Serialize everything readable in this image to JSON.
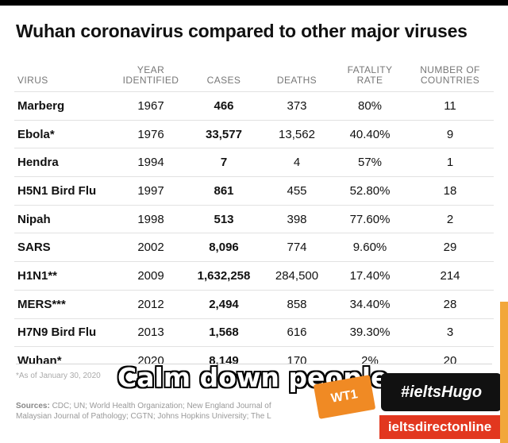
{
  "title": "Wuhan coronavirus compared to other major viruses",
  "headers": {
    "virus": "VIRUS",
    "year": "YEAR IDENTIFIED",
    "cases": "CASES",
    "deaths": "DEATHS",
    "fatality": "FATALITY RATE",
    "countries": "NUMBER OF COUNTRIES"
  },
  "rows": [
    {
      "virus": "Marberg",
      "year": "1967",
      "cases": "466",
      "deaths": "373",
      "fatality": "80%",
      "countries": "11"
    },
    {
      "virus": "Ebola*",
      "year": "1976",
      "cases": "33,577",
      "deaths": "13,562",
      "fatality": "40.40%",
      "countries": "9"
    },
    {
      "virus": "Hendra",
      "year": "1994",
      "cases": "7",
      "deaths": "4",
      "fatality": "57%",
      "countries": "1"
    },
    {
      "virus": "H5N1 Bird Flu",
      "year": "1997",
      "cases": "861",
      "deaths": "455",
      "fatality": "52.80%",
      "countries": "18"
    },
    {
      "virus": "Nipah",
      "year": "1998",
      "cases": "513",
      "deaths": "398",
      "fatality": "77.60%",
      "countries": "2"
    },
    {
      "virus": "SARS",
      "year": "2002",
      "cases": "8,096",
      "deaths": "774",
      "fatality": "9.60%",
      "countries": "29"
    },
    {
      "virus": "H1N1**",
      "year": "2009",
      "cases": "1,632,258",
      "deaths": "284,500",
      "fatality": "17.40%",
      "countries": "214"
    },
    {
      "virus": "MERS***",
      "year": "2012",
      "cases": "2,494",
      "deaths": "858",
      "fatality": "34.40%",
      "countries": "28"
    },
    {
      "virus": "H7N9 Bird Flu",
      "year": "2013",
      "cases": "1,568",
      "deaths": "616",
      "fatality": "39.30%",
      "countries": "3"
    },
    {
      "virus": "Wuhan*",
      "year": "2020",
      "cases": "8,149",
      "deaths": "170",
      "fatality": "2%",
      "countries": "20"
    }
  ],
  "footnote": "*As of January 30, 2020",
  "sources_label": "Sources:",
  "sources_line1": "CDC; UN; World Health Organization; New England Journal of",
  "sources_line2": "Malaysian Journal of Pathology; CGTN; Johns Hopkins University; The L",
  "overlay_caption": "Calm down people",
  "badge_wt": "WT1",
  "handle": "#ieltsHugo",
  "site": "ieltsdirectonline",
  "colors": {
    "badge": "#f08a24",
    "handle_bg": "#111111",
    "site_bg": "#e2371f"
  }
}
